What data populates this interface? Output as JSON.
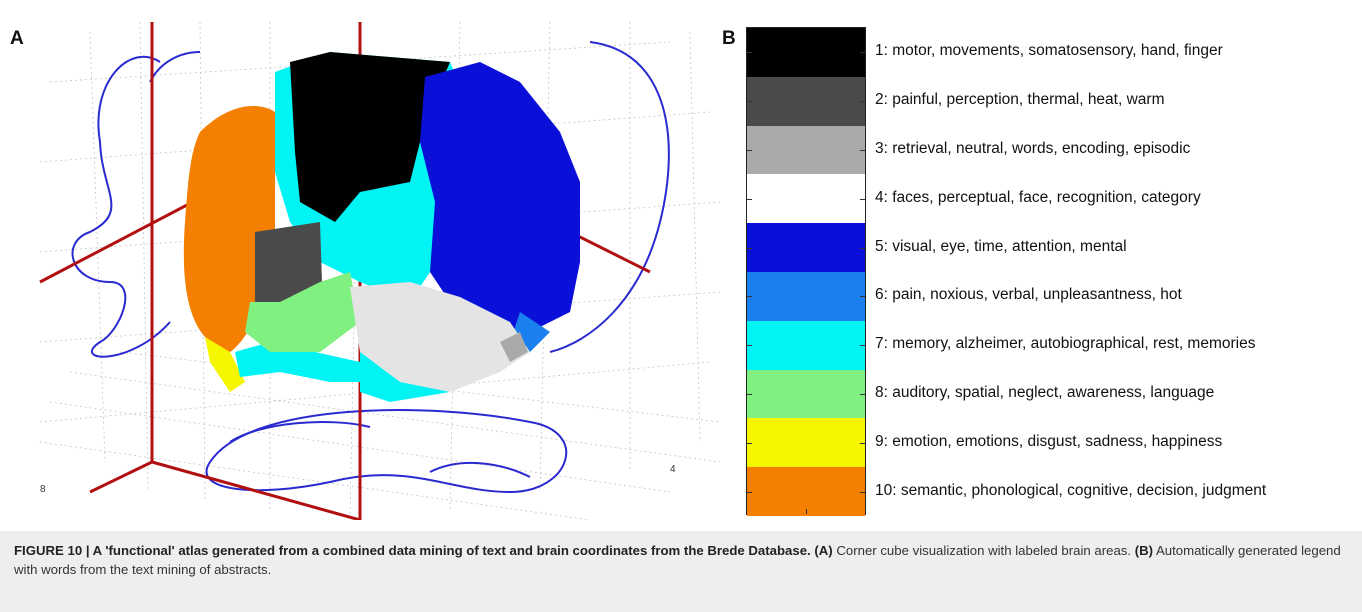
{
  "panels": {
    "a": "A",
    "b": "B"
  },
  "axis_ticks": {
    "left_axis": "8",
    "right_axis": "4"
  },
  "legend": {
    "items": [
      {
        "label": "1: motor, movements, somatosensory, hand, finger",
        "color": "#000000"
      },
      {
        "label": "2: painful, perception, thermal, heat, warm",
        "color": "#4a4a4a"
      },
      {
        "label": "3: retrieval, neutral, words, encoding, episodic",
        "color": "#aaaaaa"
      },
      {
        "label": "4: faces, perceptual, face, recognition, category",
        "color": "#ffffff"
      },
      {
        "label": "5: visual, eye, time, attention, mental",
        "color": "#0a10d8"
      },
      {
        "label": "6: pain, noxious, verbal, unpleasantness, hot",
        "color": "#1a80f0"
      },
      {
        "label": "7: memory, alzheimer, autobiographical, rest, memories",
        "color": "#00f4f4"
      },
      {
        "label": "8: auditory, spatial, neglect, awareness, language",
        "color": "#80f080"
      },
      {
        "label": "9: emotion, emotions, disgust, sadness, happiness",
        "color": "#f6f600"
      },
      {
        "label": "10: semantic, phonological, cognitive, decision, judgment",
        "color": "#f47f00"
      }
    ]
  },
  "caption": {
    "figure_label": "FIGURE 10 | A 'functional' atlas generated from a combined data mining of text and brain coordinates from the Brede Database.",
    "a_tag": "(A)",
    "a_text": " Corner cube visualization with labeled brain areas. ",
    "b_tag": "(B)",
    "b_text": " Automatically generated legend with words from the text mining of abstracts."
  }
}
